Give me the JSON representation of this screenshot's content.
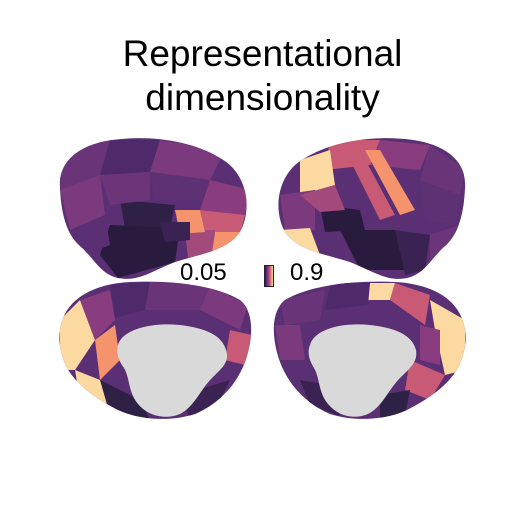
{
  "figure": {
    "title_line1": "Representational",
    "title_line2": "dimensionality"
  },
  "colorbar": {
    "min_label": "0.05",
    "max_label": "0.9",
    "min_value": 0.05,
    "max_value": 0.9,
    "colors": [
      "#281b3e",
      "#5a2f73",
      "#8a3d7e",
      "#c85a76",
      "#f4936c",
      "#fbd9a0"
    ]
  },
  "colors": {
    "medial_wall": "#d9d9d9",
    "background": "#ffffff"
  }
}
